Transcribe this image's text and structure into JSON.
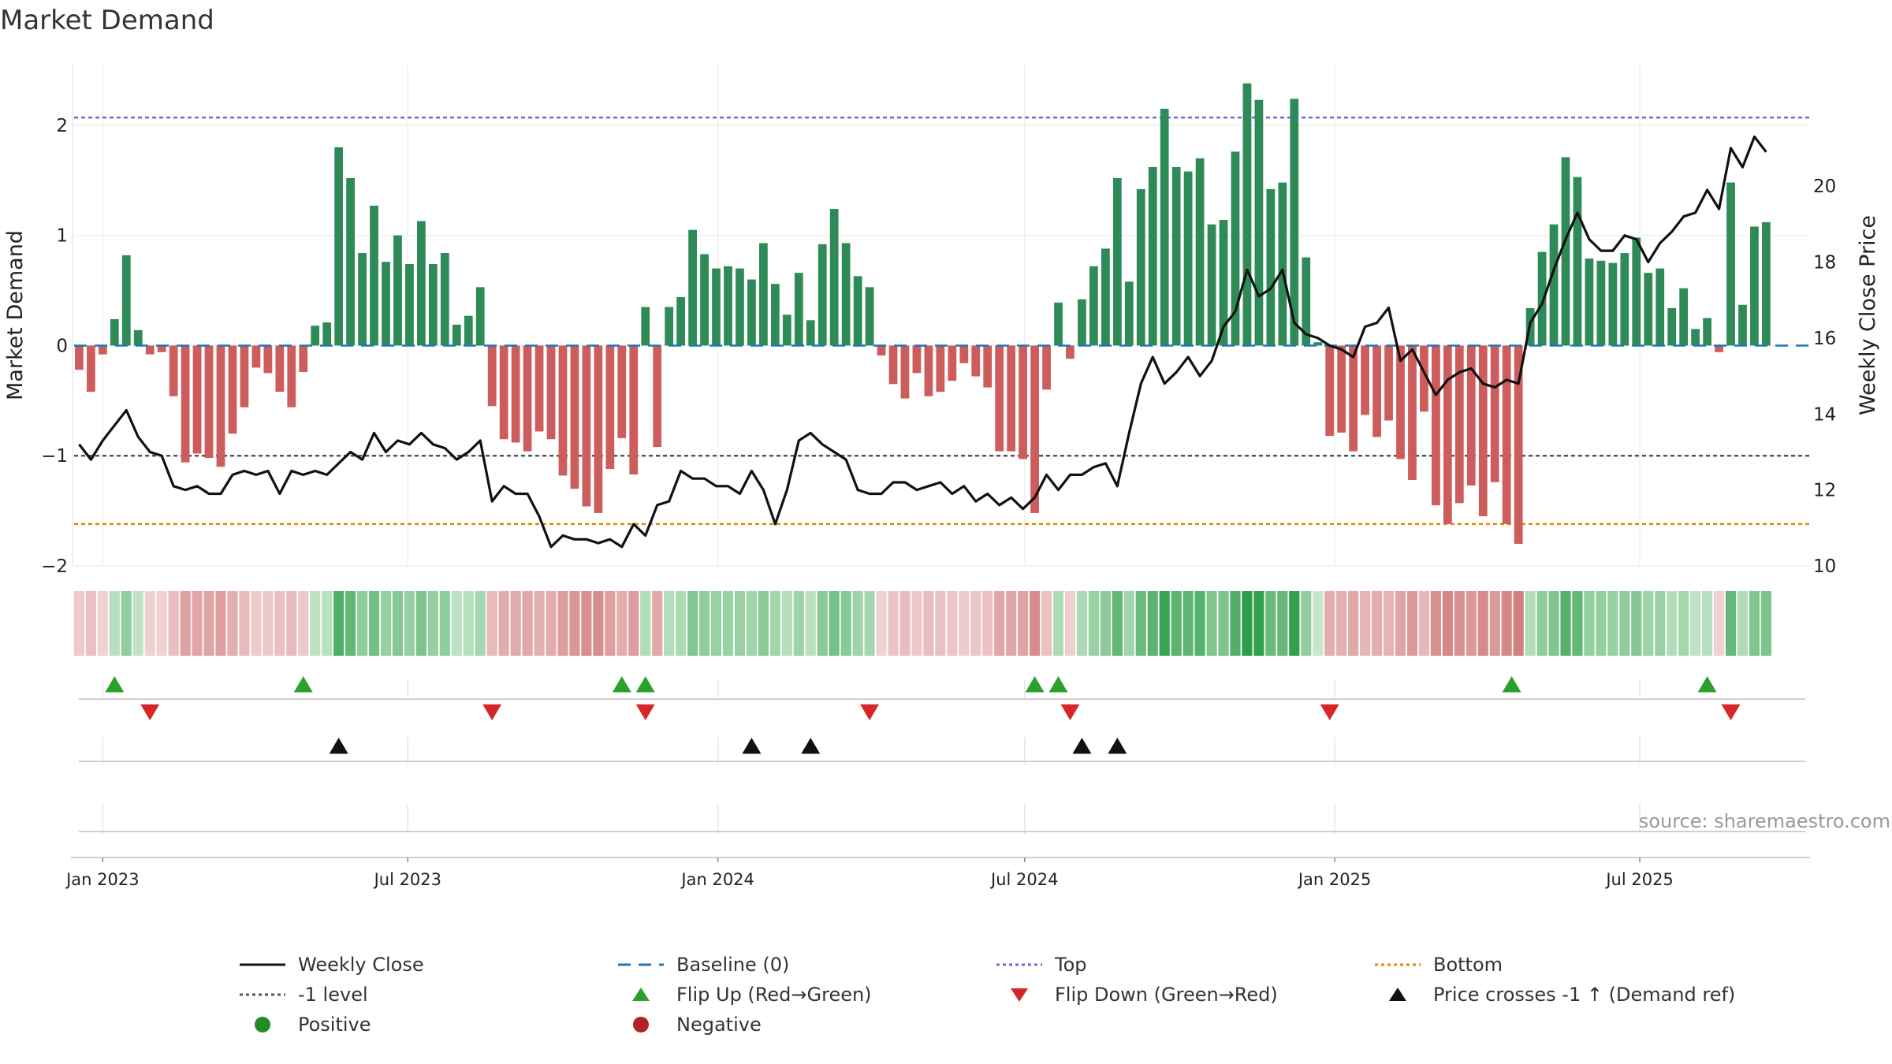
{
  "title": "Market Demand",
  "source": "source: sharemaestro.com",
  "colors": {
    "positive_bar": "#2e8b57",
    "negative_bar": "#cd5c5c",
    "baseline": "#1f77b4",
    "top": "#6b6bd6",
    "bottom": "#e08a00",
    "level": "#555555",
    "price": "#111111",
    "flip_up": "#2ca02c",
    "flip_down": "#d62728",
    "cross": "#111111"
  },
  "legend": [
    {
      "key": "weekly_close",
      "label": "Weekly Close",
      "icon": "solid-line-icon",
      "color": "#111111"
    },
    {
      "key": "baseline",
      "label": "Baseline (0)",
      "icon": "dashed-line-icon",
      "color": "#1f77b4"
    },
    {
      "key": "top",
      "label": "Top",
      "icon": "dotted-line-icon",
      "color": "#6b6bd6"
    },
    {
      "key": "bottom",
      "label": "Bottom",
      "icon": "dotted-line-icon",
      "color": "#e08a00"
    },
    {
      "key": "level",
      "label": "-1 level",
      "icon": "dotted-line-icon",
      "color": "#555555"
    },
    {
      "key": "flip_up",
      "label": "Flip Up (Red→Green)",
      "icon": "triangle-up-icon",
      "color": "#2ca02c"
    },
    {
      "key": "flip_down",
      "label": "Flip Down (Green→Red)",
      "icon": "triangle-down-icon",
      "color": "#d62728"
    },
    {
      "key": "cross",
      "label": "Price crosses -1 ↑ (Demand ref)",
      "icon": "triangle-up-icon",
      "color": "#111111"
    },
    {
      "key": "positive",
      "label": "Positive",
      "icon": "circle-icon",
      "color": "#228b22"
    },
    {
      "key": "negative",
      "label": "Negative",
      "icon": "circle-icon",
      "color": "#b22222"
    }
  ],
  "chart_data": {
    "type": "bar+line",
    "title": "Market Demand",
    "ylabel": "Market Demand",
    "y2label": "Weekly Close Price",
    "ylim": [
      -2.0,
      2.55
    ],
    "y2lim": [
      10.0,
      23.2
    ],
    "yticks": [
      -2,
      -1,
      0,
      1,
      2
    ],
    "yticklabels": [
      "−2",
      "−1",
      "0",
      "1",
      "2"
    ],
    "y2ticks": [
      10,
      12,
      14,
      16,
      18,
      20
    ],
    "x_start": "2022-12-16",
    "x_end": "2025-10-10",
    "x_range_days": [
      -17,
      1013
    ],
    "xticks": [
      {
        "label": "Jan 2023",
        "day": 0
      },
      {
        "label": "Jul 2023",
        "day": 181
      },
      {
        "label": "Jan 2024",
        "day": 365
      },
      {
        "label": "Jul 2024",
        "day": 547
      },
      {
        "label": "Jan 2025",
        "day": 731
      },
      {
        "label": "Jul 2025",
        "day": 912
      }
    ],
    "first_bar_day": -14,
    "bar_spacing_days": 7,
    "reference_lines": {
      "top": 2.07,
      "bottom": -1.62,
      "level": -1.0,
      "baseline": 0
    },
    "demand": [
      -0.22,
      -0.42,
      -0.08,
      0.24,
      0.82,
      0.14,
      -0.08,
      -0.06,
      -0.46,
      -1.06,
      -0.98,
      -1.02,
      -1.1,
      -0.8,
      -0.56,
      -0.2,
      -0.25,
      -0.42,
      -0.56,
      -0.24,
      0.18,
      0.21,
      1.8,
      1.52,
      0.84,
      1.27,
      0.76,
      1.0,
      0.74,
      1.13,
      0.74,
      0.84,
      0.19,
      0.27,
      0.53,
      -0.55,
      -0.85,
      -0.88,
      -0.96,
      -0.78,
      -0.85,
      -1.18,
      -1.3,
      -1.46,
      -1.52,
      -1.12,
      -0.84,
      -1.17,
      0.35,
      -0.92,
      0.35,
      0.44,
      1.05,
      0.83,
      0.7,
      0.72,
      0.7,
      0.6,
      0.93,
      0.56,
      0.28,
      0.66,
      0.23,
      0.92,
      1.24,
      0.93,
      0.63,
      0.53,
      -0.09,
      -0.35,
      -0.48,
      -0.25,
      -0.46,
      -0.42,
      -0.32,
      -0.16,
      -0.28,
      -0.38,
      -0.96,
      -0.96,
      -1.03,
      -1.52,
      -0.4,
      0.39,
      -0.12,
      0.42,
      0.72,
      0.88,
      1.52,
      0.58,
      1.42,
      1.62,
      2.15,
      1.62,
      1.58,
      1.7,
      1.1,
      1.14,
      1.76,
      2.38,
      2.23,
      1.42,
      1.48,
      2.24,
      0.8,
      0.03,
      -0.82,
      -0.79,
      -0.96,
      -0.63,
      -0.83,
      -0.68,
      -1.03,
      -1.22,
      -0.6,
      -1.45,
      -1.62,
      -1.43,
      -1.27,
      -1.55,
      -1.24,
      -1.62,
      -1.8,
      0.34,
      0.85,
      1.1,
      1.71,
      1.53,
      0.79,
      0.77,
      0.75,
      0.84,
      0.98,
      0.66,
      0.7,
      0.34,
      0.52,
      0.15,
      0.25,
      -0.06,
      1.48,
      0.37,
      1.08,
      1.12
    ],
    "weekly_close": [
      13.2,
      12.8,
      13.3,
      13.7,
      14.1,
      13.4,
      13.0,
      12.9,
      12.1,
      12.0,
      12.1,
      11.9,
      11.9,
      12.4,
      12.5,
      12.4,
      12.5,
      11.9,
      12.5,
      12.4,
      12.5,
      12.4,
      12.7,
      13.0,
      12.8,
      13.5,
      13.0,
      13.3,
      13.2,
      13.5,
      13.2,
      13.1,
      12.8,
      13.0,
      13.3,
      11.7,
      12.1,
      11.9,
      11.9,
      11.3,
      10.5,
      10.8,
      10.7,
      10.7,
      10.6,
      10.7,
      10.5,
      11.1,
      10.8,
      11.6,
      11.7,
      12.5,
      12.3,
      12.3,
      12.1,
      12.1,
      11.9,
      12.5,
      12.0,
      11.1,
      12.0,
      13.3,
      13.5,
      13.2,
      13.0,
      12.8,
      12.0,
      11.9,
      11.9,
      12.2,
      12.2,
      12.0,
      12.1,
      12.2,
      11.9,
      12.1,
      11.7,
      11.9,
      11.6,
      11.8,
      11.5,
      11.8,
      12.4,
      12.0,
      12.4,
      12.4,
      12.6,
      12.7,
      12.1,
      13.5,
      14.8,
      15.5,
      14.8,
      15.1,
      15.5,
      15.0,
      15.4,
      16.3,
      16.7,
      17.8,
      17.1,
      17.3,
      17.8,
      16.4,
      16.1,
      16.0,
      15.8,
      15.7,
      15.5,
      16.3,
      16.4,
      16.8,
      15.4,
      15.7,
      15.1,
      14.5,
      14.9,
      15.1,
      15.2,
      14.8,
      14.7,
      14.9,
      14.8,
      16.4,
      16.9,
      17.8,
      18.6,
      19.3,
      18.6,
      18.3,
      18.3,
      18.7,
      18.6,
      18.0,
      18.5,
      18.8,
      19.2,
      19.3,
      19.9,
      19.4,
      21.0,
      20.5,
      21.3,
      20.9
    ],
    "flip_up_days": [
      7,
      119,
      308,
      322,
      553,
      567,
      836,
      952
    ],
    "flip_down_days": [
      28,
      231,
      322,
      455,
      574,
      728,
      966
    ],
    "cross_days": [
      140,
      385,
      420,
      581,
      602
    ]
  }
}
